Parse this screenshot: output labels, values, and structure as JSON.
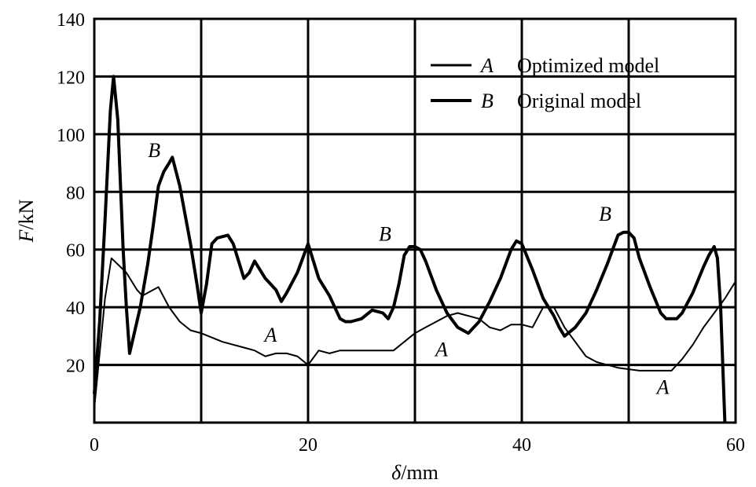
{
  "chart_data": {
    "type": "line",
    "xlabel_symbol": "δ",
    "xlabel_unit": "/mm",
    "ylabel_symbol": "F",
    "ylabel_unit": "/kN",
    "xlim": [
      0,
      60
    ],
    "ylim": [
      0,
      140
    ],
    "x_ticks": [
      0,
      20,
      40,
      60
    ],
    "y_ticks": [
      20,
      40,
      60,
      80,
      100,
      120,
      140
    ],
    "x_tick_labels": [
      "0",
      "20",
      "40",
      "60"
    ],
    "y_tick_labels": [
      "20",
      "40",
      "60",
      "80",
      "100",
      "120",
      "140"
    ],
    "grid": true,
    "legend_position": "top-right",
    "legend": [
      {
        "letter": "A",
        "text": "Optimized model"
      },
      {
        "letter": "B",
        "text": "Original model"
      }
    ],
    "series": [
      {
        "name": "A",
        "stroke_width": 2,
        "points": [
          [
            0,
            5
          ],
          [
            1,
            43
          ],
          [
            1.6,
            57
          ],
          [
            3,
            52
          ],
          [
            4,
            46
          ],
          [
            4.5,
            44
          ],
          [
            6,
            47
          ],
          [
            7,
            40
          ],
          [
            8,
            35
          ],
          [
            9,
            32
          ],
          [
            10,
            31
          ],
          [
            12,
            28
          ],
          [
            14,
            26
          ],
          [
            15,
            25
          ],
          [
            16,
            23
          ],
          [
            17,
            24
          ],
          [
            18,
            24
          ],
          [
            19,
            23
          ],
          [
            20,
            20
          ],
          [
            21,
            25
          ],
          [
            22,
            24
          ],
          [
            23,
            25
          ],
          [
            24,
            25
          ],
          [
            26,
            25
          ],
          [
            28,
            25
          ],
          [
            29,
            28
          ],
          [
            30,
            31
          ],
          [
            31,
            33
          ],
          [
            32,
            35
          ],
          [
            33,
            37
          ],
          [
            34,
            38
          ],
          [
            36,
            36
          ],
          [
            37,
            33
          ],
          [
            38,
            32
          ],
          [
            39,
            34
          ],
          [
            40,
            34
          ],
          [
            41,
            33
          ],
          [
            42,
            40
          ],
          [
            43,
            40
          ],
          [
            44,
            33
          ],
          [
            45,
            28
          ],
          [
            46,
            23
          ],
          [
            47,
            21
          ],
          [
            49,
            19
          ],
          [
            51,
            18
          ],
          [
            53,
            18
          ],
          [
            54,
            18
          ],
          [
            55,
            22
          ],
          [
            56,
            27
          ],
          [
            57,
            33
          ],
          [
            58,
            38
          ],
          [
            59,
            43
          ],
          [
            60,
            49
          ]
        ]
      },
      {
        "name": "B",
        "stroke_width": 4,
        "points": [
          [
            0,
            10
          ],
          [
            0.5,
            35
          ],
          [
            1,
            70
          ],
          [
            1.5,
            108
          ],
          [
            1.8,
            120
          ],
          [
            2.2,
            105
          ],
          [
            2.7,
            60
          ],
          [
            3,
            40
          ],
          [
            3.3,
            24
          ],
          [
            3.8,
            32
          ],
          [
            4.3,
            40
          ],
          [
            5,
            55
          ],
          [
            5.5,
            68
          ],
          [
            6,
            82
          ],
          [
            6.5,
            87
          ],
          [
            7,
            90
          ],
          [
            7.3,
            92
          ],
          [
            8,
            82
          ],
          [
            9,
            62
          ],
          [
            9.6,
            48
          ],
          [
            10,
            38
          ],
          [
            10.5,
            48
          ],
          [
            11,
            62
          ],
          [
            11.5,
            64
          ],
          [
            12.5,
            65
          ],
          [
            13,
            62
          ],
          [
            14,
            50
          ],
          [
            14.5,
            52
          ],
          [
            15,
            56
          ],
          [
            16,
            50
          ],
          [
            17,
            46
          ],
          [
            17.5,
            42
          ],
          [
            18,
            45
          ],
          [
            19,
            52
          ],
          [
            20,
            62
          ],
          [
            21,
            50
          ],
          [
            22,
            44
          ],
          [
            23,
            36
          ],
          [
            23.5,
            35
          ],
          [
            24,
            35
          ],
          [
            25,
            36
          ],
          [
            26,
            39
          ],
          [
            27,
            38
          ],
          [
            27.5,
            36
          ],
          [
            28,
            40
          ],
          [
            28.5,
            48
          ],
          [
            29,
            58
          ],
          [
            29.5,
            61
          ],
          [
            30,
            61
          ],
          [
            30.5,
            60
          ],
          [
            31,
            56
          ],
          [
            32,
            46
          ],
          [
            33,
            38
          ],
          [
            34,
            33
          ],
          [
            35,
            31
          ],
          [
            36,
            35
          ],
          [
            37,
            42
          ],
          [
            38,
            50
          ],
          [
            39,
            60
          ],
          [
            39.5,
            63
          ],
          [
            40,
            62
          ],
          [
            41,
            53
          ],
          [
            42,
            43
          ],
          [
            43,
            37
          ],
          [
            43.5,
            33
          ],
          [
            44,
            30
          ],
          [
            45,
            33
          ],
          [
            46,
            38
          ],
          [
            47,
            46
          ],
          [
            48,
            55
          ],
          [
            49,
            65
          ],
          [
            49.5,
            66
          ],
          [
            50,
            66
          ],
          [
            50.5,
            64
          ],
          [
            51,
            57
          ],
          [
            52,
            47
          ],
          [
            53,
            38
          ],
          [
            53.5,
            36
          ],
          [
            54.5,
            36
          ],
          [
            55,
            38
          ],
          [
            56,
            45
          ],
          [
            57,
            54
          ],
          [
            57.5,
            58
          ],
          [
            58,
            61
          ],
          [
            58.3,
            57
          ],
          [
            58.6,
            40
          ],
          [
            59,
            0
          ]
        ]
      }
    ],
    "curve_labels": [
      {
        "text": "B",
        "x": 5.6,
        "y": 92
      },
      {
        "text": "A",
        "x": 16.5,
        "y": 28
      },
      {
        "text": "B",
        "x": 27.2,
        "y": 63
      },
      {
        "text": "A",
        "x": 32.5,
        "y": 23
      },
      {
        "text": "B",
        "x": 47.8,
        "y": 70
      },
      {
        "text": "A",
        "x": 53.2,
        "y": 10
      }
    ]
  }
}
